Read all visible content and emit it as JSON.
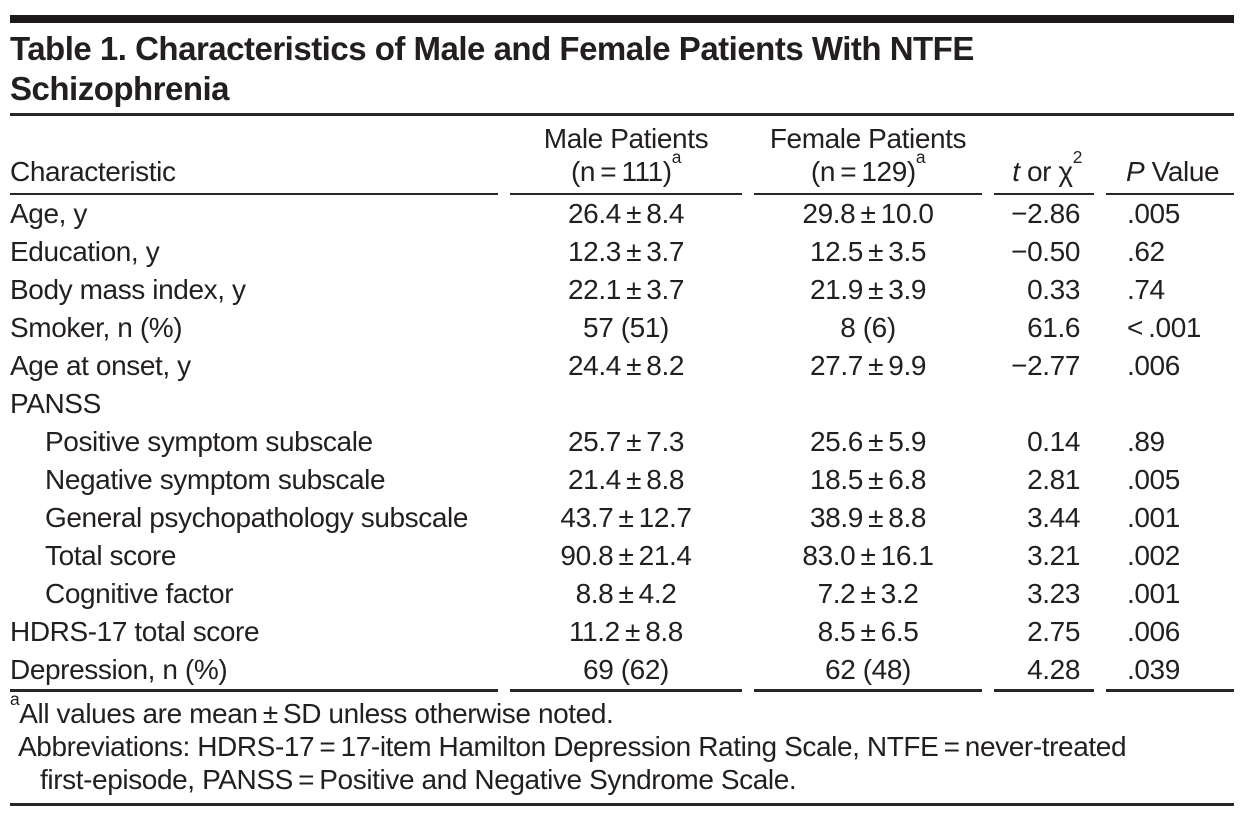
{
  "title": "Table 1. Characteristics of Male and Female Patients With NTFE Schizophrenia",
  "colors": {
    "text": "#231f20",
    "rule": "#2a2627",
    "top_bar": "#1c191a",
    "background": "#ffffff"
  },
  "header": {
    "characteristic": "Characteristic",
    "male_line1": "Male Patients",
    "male_line2": "(n = 111)",
    "male_sup": "a",
    "female_line1": "Female Patients",
    "female_line2": "(n = 129)",
    "female_sup": "a",
    "stat_italic": "t",
    "stat_rest": " or χ",
    "stat_sup": "2",
    "p_italic": "P",
    "p_rest": " Value"
  },
  "rows": [
    {
      "label": "Age, y",
      "male": "26.4 ± 8.4",
      "female": "29.8 ± 10.0",
      "stat": "−2.86",
      "p": ".005"
    },
    {
      "label": "Education, y",
      "male": "12.3 ± 3.7",
      "female": "12.5 ± 3.5",
      "stat": "−0.50",
      "p": ".62"
    },
    {
      "label": "Body mass index, y",
      "male": "22.1 ± 3.7",
      "female": "21.9 ± 3.9",
      "stat": "0.33",
      "p": ".74"
    },
    {
      "label": "Smoker, n (%)",
      "male": "57 (51)",
      "female": "8 (6)",
      "stat": "61.6",
      "p": "< .001"
    },
    {
      "label": "Age at onset, y",
      "male": "24.4 ± 8.2",
      "female": "27.7 ± 9.9",
      "stat": "−2.77",
      "p": ".006"
    },
    {
      "label": "PANSS",
      "male": "",
      "female": "",
      "stat": "",
      "p": ""
    },
    {
      "label": "Positive symptom subscale",
      "male": "25.7 ± 7.3",
      "female": "25.6 ± 5.9",
      "stat": "0.14",
      "p": ".89"
    },
    {
      "label": "Negative symptom subscale",
      "male": "21.4 ± 8.8",
      "female": "18.5 ± 6.8",
      "stat": "2.81",
      "p": ".005"
    },
    {
      "label": "General psychopathology subscale",
      "male": "43.7 ± 12.7",
      "female": "38.9 ± 8.8",
      "stat": "3.44",
      "p": ".001"
    },
    {
      "label": "Total score",
      "male": "90.8 ± 21.4",
      "female": "83.0 ± 16.1",
      "stat": "3.21",
      "p": ".002"
    },
    {
      "label": "Cognitive factor",
      "male": "8.8 ± 4.2",
      "female": "7.2 ± 3.2",
      "stat": "3.23",
      "p": ".001"
    },
    {
      "label": "HDRS-17 total score",
      "male": "11.2 ± 8.8",
      "female": "8.5 ± 6.5",
      "stat": "2.75",
      "p": ".006"
    },
    {
      "label": "Depression, n (%)",
      "male": "69 (62)",
      "female": "62 (48)",
      "stat": "4.28",
      "p": ".039"
    }
  ],
  "footnotes": {
    "note1_sup": "a",
    "note1_text": "All values are mean ± SD unless otherwise noted.",
    "note2_line1": "Abbreviations: HDRS-17 = 17-item Hamilton Depression Rating Scale, NTFE = never-treated",
    "note2_line2": "first-episode, PANSS = Positive and Negative Syndrome Scale."
  }
}
